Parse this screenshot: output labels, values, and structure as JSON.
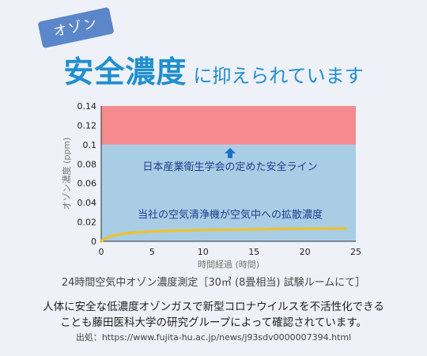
{
  "header": {
    "badge": "オゾン",
    "title_main": "安全濃度",
    "title_rest": "に抑えられています"
  },
  "chart_data": {
    "type": "line",
    "title": "",
    "xlabel": "時間経過 (時間)",
    "ylabel": "オゾン濃度 (ppm)",
    "xlim": [
      0,
      25
    ],
    "ylim": [
      0,
      0.14
    ],
    "x_ticks": [
      "0",
      "5",
      "10",
      "15",
      "20",
      "25"
    ],
    "y_ticks": [
      "0",
      "0.02",
      "0.04",
      "0.06",
      "0.08",
      "0.1",
      "0.12",
      "0.14"
    ],
    "safe_line": 0.1,
    "safe_label": "日本産業衛生学会の定めた安全ライン",
    "series": [
      {
        "name": "当社の空気清浄機が空気中への拡散濃度",
        "x": [
          0,
          0.5,
          1,
          2,
          3,
          5,
          7,
          10,
          15,
          20,
          24
        ],
        "y": [
          0,
          0.0035,
          0.0055,
          0.0075,
          0.0088,
          0.0102,
          0.011,
          0.0117,
          0.0125,
          0.013,
          0.0132
        ]
      }
    ],
    "colors": {
      "danger_zone": "#f58b8f",
      "safe_zone": "#aacde6",
      "line": "#e8c33a",
      "arrow": "#1b6fc6",
      "label": "#1b3f8a"
    },
    "grid": false
  },
  "notes": {
    "test_condition": "24時間空気中オゾン濃度測定［30㎥ (8畳相当) 試験ルームにて］",
    "description_line1": "人体に安全な低濃度オゾンガスで新型コロナウイルスを不活性化できる",
    "description_line2": "ことも藤田医科大学の研究グループによって確認されています。",
    "source": "出処：https://www.fujita-hu.ac.jp/news/j93sdv0000007394.html"
  }
}
